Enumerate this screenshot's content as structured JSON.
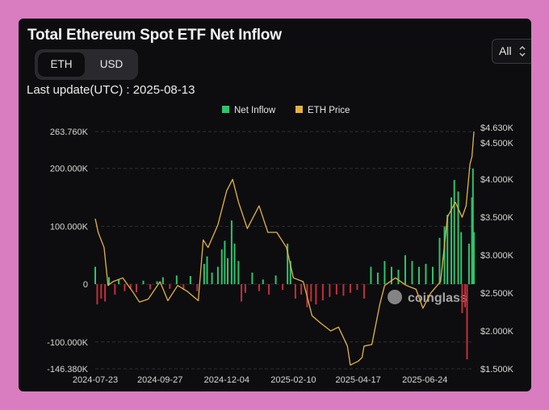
{
  "page": {
    "title": "Total Ethereum Spot ETF Net Inflow",
    "unit_toggle": {
      "options": [
        "ETH",
        "USD"
      ],
      "selected": "ETH"
    },
    "range_select": {
      "value": "All",
      "chevron": "⌃⌄"
    },
    "last_update": "Last update(UTC) : 2025-08-13",
    "watermark": "coinglass"
  },
  "chart_data": {
    "type": "bar",
    "legend": {
      "position": "top-center",
      "items": [
        {
          "name": "Net Inflow",
          "color": "#2fc36d"
        },
        {
          "name": "ETH Price",
          "color": "#e3b341"
        }
      ]
    },
    "colors": {
      "inflow_positive": "#2fc36d",
      "inflow_negative": "#c0313b",
      "price": "#e3b341"
    },
    "left_axis": {
      "ylim": [
        -146380,
        263760
      ],
      "ticks": [
        263760,
        200000,
        100000,
        0,
        -100000,
        -146380
      ],
      "tick_labels": [
        "263.760K",
        "200.000K",
        "100.000K",
        "0",
        "-100.000K",
        "-146.380K"
      ]
    },
    "right_axis": {
      "ylim": [
        1500,
        4630
      ],
      "ticks": [
        4630,
        4500,
        4000,
        3500,
        3000,
        2500,
        2000,
        1500
      ],
      "tick_labels": [
        "$4.630K",
        "$4.500K",
        "$4.000K",
        "$3.500K",
        "$3.000K",
        "$2.500K",
        "$2.000K",
        "$1.500K"
      ]
    },
    "x_axis": {
      "range": [
        "2024-07-23",
        "2025-08-13"
      ],
      "tick_labels": [
        "2024-07-23",
        "2024-09-27",
        "2024-12-04",
        "2025-02-10",
        "2025-04-17",
        "2025-06-24"
      ]
    },
    "grid": true,
    "series": [
      {
        "name": "Net Inflow",
        "kind": "bar",
        "x": [
          "2024-07-23",
          "2024-07-25",
          "2024-07-29",
          "2024-08-02",
          "2024-08-06",
          "2024-08-12",
          "2024-08-16",
          "2024-08-22",
          "2024-08-28",
          "2024-09-03",
          "2024-09-10",
          "2024-09-17",
          "2024-09-24",
          "2024-09-30",
          "2024-10-07",
          "2024-10-14",
          "2024-10-21",
          "2024-10-28",
          "2024-11-04",
          "2024-11-11",
          "2024-11-14",
          "2024-11-19",
          "2024-11-25",
          "2024-11-29",
          "2024-12-02",
          "2024-12-05",
          "2024-12-09",
          "2024-12-12",
          "2024-12-16",
          "2024-12-19",
          "2024-12-23",
          "2024-12-30",
          "2025-01-06",
          "2025-01-10",
          "2025-01-16",
          "2025-01-23",
          "2025-01-30",
          "2025-02-04",
          "2025-02-07",
          "2025-02-12",
          "2025-02-18",
          "2025-02-24",
          "2025-02-28",
          "2025-03-05",
          "2025-03-12",
          "2025-03-19",
          "2025-03-26",
          "2025-04-02",
          "2025-04-09",
          "2025-04-16",
          "2025-04-23",
          "2025-04-30",
          "2025-05-07",
          "2025-05-14",
          "2025-05-21",
          "2025-05-28",
          "2025-06-04",
          "2025-06-11",
          "2025-06-18",
          "2025-06-25",
          "2025-07-02",
          "2025-07-09",
          "2025-07-14",
          "2025-07-17",
          "2025-07-21",
          "2025-07-24",
          "2025-07-28",
          "2025-07-31",
          "2025-08-01",
          "2025-08-04",
          "2025-08-06",
          "2025-08-08",
          "2025-08-11",
          "2025-08-12",
          "2025-08-13"
        ],
        "values": [
          30000,
          -35000,
          -25000,
          -30000,
          12000,
          -18000,
          8000,
          -12000,
          -8000,
          -14000,
          6000,
          -9000,
          5000,
          12000,
          -8000,
          15000,
          -10000,
          14000,
          -12000,
          35000,
          48000,
          20000,
          30000,
          60000,
          75000,
          45000,
          110000,
          70000,
          40000,
          -30000,
          -15000,
          20000,
          -12000,
          8000,
          -18000,
          15000,
          -10000,
          70000,
          40000,
          -25000,
          -18000,
          -40000,
          -30000,
          -35000,
          -28000,
          -22000,
          -18000,
          -20000,
          -15000,
          -10000,
          -25000,
          30000,
          20000,
          40000,
          30000,
          25000,
          50000,
          40000,
          30000,
          35000,
          30000,
          80000,
          100000,
          120000,
          150000,
          180000,
          160000,
          90000,
          -50000,
          -40000,
          -130000,
          70000,
          150000,
          200000,
          90000
        ]
      },
      {
        "name": "ETH Price",
        "kind": "line",
        "x": [
          "2024-07-23",
          "2024-07-26",
          "2024-08-01",
          "2024-08-05",
          "2024-08-10",
          "2024-08-20",
          "2024-08-30",
          "2024-09-06",
          "2024-09-15",
          "2024-09-27",
          "2024-10-05",
          "2024-10-15",
          "2024-10-25",
          "2024-11-05",
          "2024-11-10",
          "2024-11-15",
          "2024-11-25",
          "2024-12-04",
          "2024-12-10",
          "2024-12-16",
          "2024-12-25",
          "2025-01-06",
          "2025-01-15",
          "2025-01-24",
          "2025-02-03",
          "2025-02-10",
          "2025-02-20",
          "2025-03-01",
          "2025-03-10",
          "2025-03-20",
          "2025-03-28",
          "2025-04-06",
          "2025-04-09",
          "2025-04-17",
          "2025-04-21",
          "2025-04-23",
          "2025-05-01",
          "2025-05-09",
          "2025-05-14",
          "2025-05-25",
          "2025-06-05",
          "2025-06-15",
          "2025-06-22",
          "2025-06-30",
          "2025-07-10",
          "2025-07-17",
          "2025-07-25",
          "2025-08-01",
          "2025-08-05",
          "2025-08-09",
          "2025-08-11",
          "2025-08-13"
        ],
        "values": [
          3480,
          3300,
          3100,
          2600,
          2650,
          2700,
          2520,
          2380,
          2420,
          2650,
          2400,
          2600,
          2520,
          2400,
          3200,
          3100,
          3400,
          3850,
          4000,
          3700,
          3350,
          3650,
          3300,
          3300,
          3100,
          2700,
          2650,
          2200,
          2100,
          2000,
          2050,
          1800,
          1550,
          1600,
          1650,
          1800,
          1820,
          2350,
          2600,
          2700,
          2600,
          2550,
          2300,
          2500,
          2650,
          3500,
          3700,
          3500,
          3650,
          4200,
          4300,
          4630
        ]
      }
    ]
  }
}
